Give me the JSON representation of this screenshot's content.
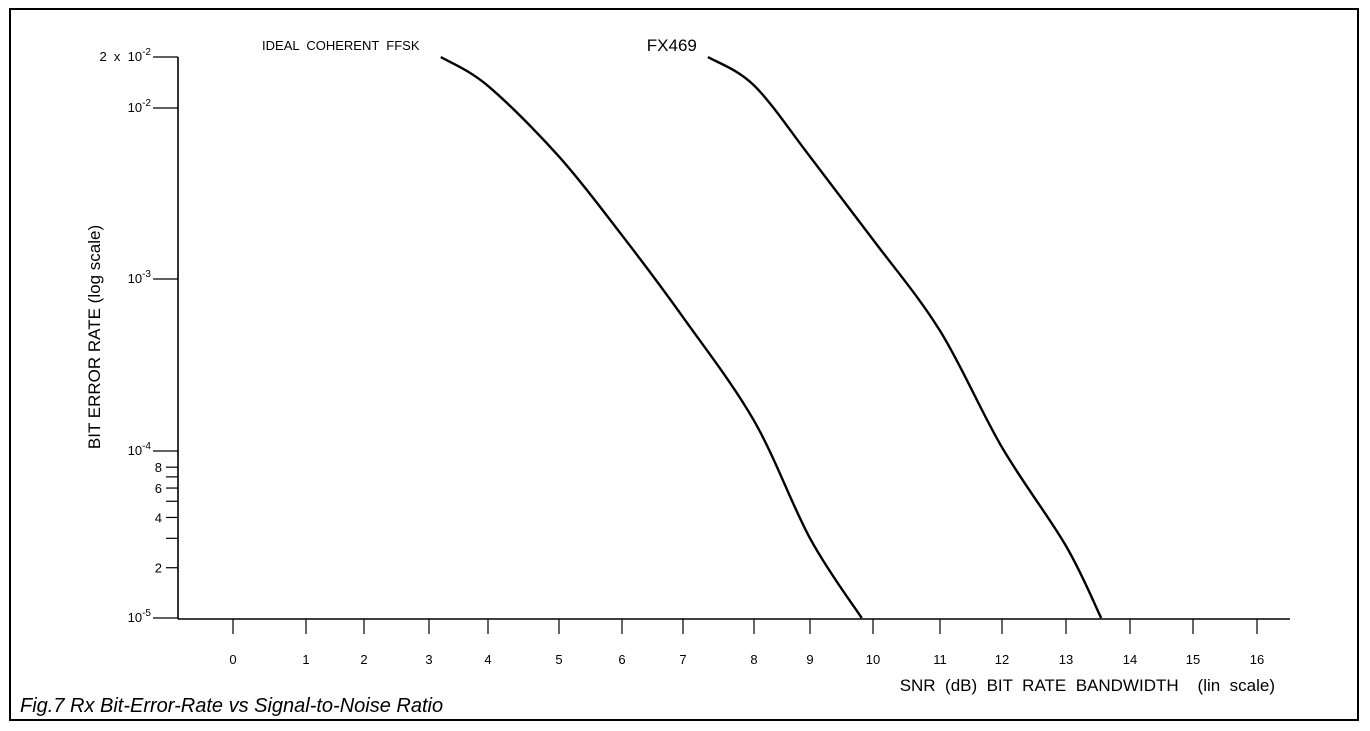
{
  "caption": "Fig.7 Rx Bit-Error-Rate vs Signal-to-Noise Ratio",
  "chart_data": {
    "type": "line",
    "title": "",
    "xlabel": "SNR  (dB)  BIT  RATE  BANDWIDTH    (lin  scale)",
    "ylabel": "BIT  ERROR  RATE  (log  scale)",
    "xlim": [
      0,
      16
    ],
    "ylim": [
      1e-05,
      0.02
    ],
    "yscale": "log",
    "grid": false,
    "x_ticks": [
      0,
      1,
      2,
      3,
      4,
      5,
      6,
      7,
      8,
      9,
      10,
      11,
      12,
      13,
      14,
      15,
      16
    ],
    "x_tick_labels": [
      "0",
      "1",
      "2",
      "3",
      "4",
      "5",
      "6",
      "7",
      "8",
      "9",
      "10",
      "11",
      "12",
      "13",
      "14",
      "15",
      "16"
    ],
    "y_major_ticks": [
      {
        "value": 0.02,
        "base": "2  x  10",
        "exp": "-2"
      },
      {
        "value": 0.01,
        "base": "10",
        "exp": "-2"
      },
      {
        "value": 0.001,
        "base": "10",
        "exp": "-3"
      },
      {
        "value": 0.0001,
        "base": "10",
        "exp": "-4"
      },
      {
        "value": 1e-05,
        "base": "10",
        "exp": "-5"
      }
    ],
    "y_minor_ticks": [
      {
        "value": 8e-05,
        "label": "8"
      },
      {
        "value": 7e-05,
        "label": ""
      },
      {
        "value": 6e-05,
        "label": "6"
      },
      {
        "value": 5e-05,
        "label": ""
      },
      {
        "value": 4e-05,
        "label": "4"
      },
      {
        "value": 3e-05,
        "label": ""
      },
      {
        "value": 2e-05,
        "label": "2"
      }
    ],
    "series": [
      {
        "name": "IDEAL  COHERENT  FFSK",
        "x": [
          3.2,
          4.0,
          5.0,
          6.0,
          7.0,
          8.0,
          9.0,
          9.82
        ],
        "y": [
          0.02,
          0.0135,
          0.0052,
          0.0018,
          0.0006,
          0.00015,
          3e-05,
          1e-05
        ]
      },
      {
        "name": "FX469",
        "x": [
          7.35,
          8.0,
          9.0,
          10.0,
          11.0,
          12.0,
          13.0,
          13.55
        ],
        "y": [
          0.02,
          0.0136,
          0.0052,
          0.0017,
          0.0005,
          0.000105,
          2.7e-05,
          1e-05
        ]
      }
    ]
  }
}
